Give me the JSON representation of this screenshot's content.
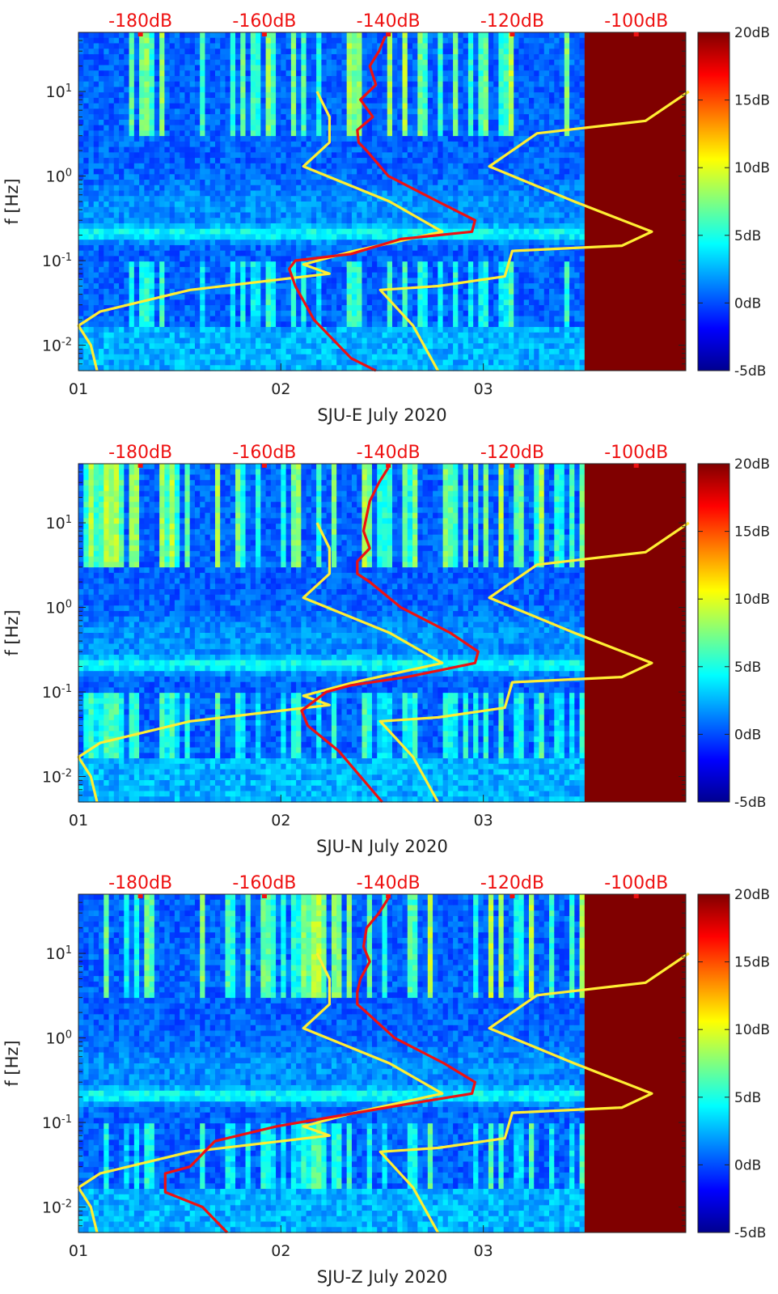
{
  "chart_data": [
    {
      "type": "heatmap",
      "title": "",
      "xlabel": "SJU-E July 2020",
      "ylabel": "f [Hz]",
      "x_ticks": [
        "01",
        "02",
        "03"
      ],
      "y_ticks": [
        "10^-2",
        "10^-1",
        "10^0",
        "10^1"
      ],
      "y_scale": "log",
      "ylim_hz": [
        0.005,
        50
      ],
      "xlim_days": [
        1,
        4
      ],
      "top_axis_ticks": [
        "-180dB",
        "-160dB",
        "-140dB",
        "-120dB",
        "-100dB"
      ],
      "top_axis_db_range": [
        -190,
        -92
      ],
      "colorbar_ticks": [
        "20dB",
        "15dB",
        "10dB",
        "5dB",
        "0dB",
        "-5dB"
      ],
      "colorbar_range_db": [
        -5,
        20
      ],
      "saturated_from_day": 3.5,
      "series": [
        {
          "name": "noise model (yellow)",
          "color": "#ffee33",
          "points": [
            [
              -151.5,
              10
            ],
            [
              -149.5,
              5
            ],
            [
              -149.5,
              2.5
            ],
            [
              -153.7,
              1.3
            ],
            [
              -139.8,
              0.5
            ],
            [
              -131.3,
              0.22
            ],
            [
              -145.5,
              0.13
            ],
            [
              -153.7,
              0.09
            ],
            [
              -149.5,
              0.07
            ],
            [
              -172.0,
              0.045
            ],
            [
              -186.5,
              0.025
            ],
            [
              -190.0,
              0.017
            ],
            [
              -188.0,
              0.01
            ],
            [
              -187.0,
              0.005
            ]
          ]
        },
        {
          "name": "noise model (yellow)",
          "color": "#ffee33",
          "points": [
            [
              -91.5,
              10
            ],
            [
              -98.5,
              4.5
            ],
            [
              -116.0,
              3.2
            ],
            [
              -123.7,
              1.3
            ],
            [
              -110.0,
              0.5
            ],
            [
              -97.5,
              0.22
            ],
            [
              -102.3,
              0.15
            ],
            [
              -120.0,
              0.13
            ],
            [
              -121.2,
              0.065
            ],
            [
              -132.0,
              0.05
            ],
            [
              -141.3,
              0.045
            ],
            [
              -136.0,
              0.017
            ],
            [
              -132.0,
              0.005
            ]
          ]
        },
        {
          "name": "station noise (red)",
          "color": "#ee1111",
          "points": [
            [
              -140.5,
              45
            ],
            [
              -141.5,
              30
            ],
            [
              -143.0,
              20
            ],
            [
              -142.0,
              12
            ],
            [
              -144.5,
              8
            ],
            [
              -142.5,
              5
            ],
            [
              -145.0,
              3.5
            ],
            [
              -144.8,
              2.5
            ],
            [
              -143.5,
              2
            ],
            [
              -140.0,
              1
            ],
            [
              -132.0,
              0.5
            ],
            [
              -126.0,
              0.3
            ],
            [
              -126.5,
              0.22
            ],
            [
              -138.0,
              0.18
            ],
            [
              -146.0,
              0.12
            ],
            [
              -155.0,
              0.1
            ],
            [
              -156.0,
              0.08
            ],
            [
              -155.0,
              0.05
            ],
            [
              -152.0,
              0.02
            ],
            [
              -146.0,
              0.007
            ],
            [
              -142.0,
              0.005
            ]
          ]
        }
      ]
    },
    {
      "type": "heatmap",
      "title": "",
      "xlabel": "SJU-N July 2020",
      "ylabel": "f [Hz]",
      "x_ticks": [
        "01",
        "02",
        "03"
      ],
      "y_ticks": [
        "10^-2",
        "10^-1",
        "10^0",
        "10^1"
      ],
      "y_scale": "log",
      "ylim_hz": [
        0.005,
        50
      ],
      "xlim_days": [
        1,
        4
      ],
      "top_axis_ticks": [
        "-180dB",
        "-160dB",
        "-140dB",
        "-120dB",
        "-100dB"
      ],
      "top_axis_db_range": [
        -190,
        -92
      ],
      "colorbar_ticks": [
        "20dB",
        "15dB",
        "10dB",
        "5dB",
        "0dB",
        "-5dB"
      ],
      "colorbar_range_db": [
        -5,
        20
      ],
      "saturated_from_day": 3.5,
      "series": [
        {
          "name": "noise model (yellow)",
          "color": "#ffee33",
          "points": [
            [
              -151.5,
              10
            ],
            [
              -149.5,
              5
            ],
            [
              -149.5,
              2.5
            ],
            [
              -153.7,
              1.3
            ],
            [
              -139.8,
              0.5
            ],
            [
              -131.3,
              0.22
            ],
            [
              -145.5,
              0.13
            ],
            [
              -153.7,
              0.09
            ],
            [
              -149.5,
              0.07
            ],
            [
              -172.0,
              0.045
            ],
            [
              -186.5,
              0.025
            ],
            [
              -190.0,
              0.017
            ],
            [
              -188.0,
              0.01
            ],
            [
              -187.0,
              0.005
            ]
          ]
        },
        {
          "name": "noise model (yellow)",
          "color": "#ffee33",
          "points": [
            [
              -91.5,
              10
            ],
            [
              -98.5,
              4.5
            ],
            [
              -116.0,
              3.2
            ],
            [
              -123.7,
              1.3
            ],
            [
              -110.0,
              0.5
            ],
            [
              -97.5,
              0.22
            ],
            [
              -102.3,
              0.15
            ],
            [
              -120.0,
              0.13
            ],
            [
              -121.2,
              0.065
            ],
            [
              -132.0,
              0.05
            ],
            [
              -141.3,
              0.045
            ],
            [
              -136.0,
              0.017
            ],
            [
              -132.0,
              0.005
            ]
          ]
        },
        {
          "name": "station noise (red)",
          "color": "#ee1111",
          "points": [
            [
              -140.0,
              45
            ],
            [
              -141.5,
              30
            ],
            [
              -143.0,
              18
            ],
            [
              -143.5,
              12
            ],
            [
              -144.0,
              8
            ],
            [
              -143.0,
              5
            ],
            [
              -145.0,
              3.5
            ],
            [
              -145.0,
              2.5
            ],
            [
              -143.0,
              2
            ],
            [
              -138.0,
              1
            ],
            [
              -130.0,
              0.5
            ],
            [
              -125.5,
              0.3
            ],
            [
              -126.0,
              0.22
            ],
            [
              -137.0,
              0.15
            ],
            [
              -146.0,
              0.12
            ],
            [
              -150.0,
              0.1
            ],
            [
              -154.0,
              0.06
            ],
            [
              -153.0,
              0.04
            ],
            [
              -148.0,
              0.02
            ],
            [
              -141.0,
              0.005
            ]
          ]
        }
      ]
    },
    {
      "type": "heatmap",
      "title": "",
      "xlabel": "SJU-Z July 2020",
      "ylabel": "f [Hz]",
      "x_ticks": [
        "01",
        "02",
        "03"
      ],
      "y_ticks": [
        "10^-2",
        "10^-1",
        "10^0",
        "10^1"
      ],
      "y_scale": "log",
      "ylim_hz": [
        0.005,
        50
      ],
      "xlim_days": [
        1,
        4
      ],
      "top_axis_ticks": [
        "-180dB",
        "-160dB",
        "-140dB",
        "-120dB",
        "-100dB"
      ],
      "top_axis_db_range": [
        -190,
        -92
      ],
      "colorbar_ticks": [
        "20dB",
        "15dB",
        "10dB",
        "5dB",
        "0dB",
        "-5dB"
      ],
      "colorbar_range_db": [
        -5,
        20
      ],
      "saturated_from_day": 3.5,
      "series": [
        {
          "name": "noise model (yellow)",
          "color": "#ffee33",
          "points": [
            [
              -151.5,
              10
            ],
            [
              -149.5,
              5
            ],
            [
              -149.5,
              2.5
            ],
            [
              -153.7,
              1.3
            ],
            [
              -139.8,
              0.5
            ],
            [
              -131.3,
              0.22
            ],
            [
              -145.5,
              0.13
            ],
            [
              -153.7,
              0.09
            ],
            [
              -149.5,
              0.07
            ],
            [
              -172.0,
              0.045
            ],
            [
              -186.5,
              0.025
            ],
            [
              -190.0,
              0.017
            ],
            [
              -188.0,
              0.01
            ],
            [
              -187.0,
              0.005
            ]
          ]
        },
        {
          "name": "noise model (yellow)",
          "color": "#ffee33",
          "points": [
            [
              -91.5,
              10
            ],
            [
              -98.5,
              4.5
            ],
            [
              -116.0,
              3.2
            ],
            [
              -123.7,
              1.3
            ],
            [
              -110.0,
              0.5
            ],
            [
              -97.5,
              0.22
            ],
            [
              -102.3,
              0.15
            ],
            [
              -120.0,
              0.13
            ],
            [
              -121.2,
              0.065
            ],
            [
              -132.0,
              0.05
            ],
            [
              -141.3,
              0.045
            ],
            [
              -136.0,
              0.017
            ],
            [
              -132.0,
              0.005
            ]
          ]
        },
        {
          "name": "station noise (red)",
          "color": "#ee1111",
          "points": [
            [
              -140.0,
              45
            ],
            [
              -141.5,
              30
            ],
            [
              -143.5,
              20
            ],
            [
              -144.0,
              12
            ],
            [
              -143.0,
              8
            ],
            [
              -144.5,
              5
            ],
            [
              -145.0,
              3.5
            ],
            [
              -145.0,
              2.5
            ],
            [
              -143.5,
              2
            ],
            [
              -139.0,
              1
            ],
            [
              -131.0,
              0.5
            ],
            [
              -126.0,
              0.3
            ],
            [
              -126.5,
              0.22
            ],
            [
              -138.0,
              0.16
            ],
            [
              -148.0,
              0.12
            ],
            [
              -158.0,
              0.09
            ],
            [
              -168.0,
              0.06
            ],
            [
              -172.0,
              0.03
            ],
            [
              -176.0,
              0.025
            ],
            [
              -176.0,
              0.015
            ],
            [
              -170.0,
              0.01
            ],
            [
              -166.0,
              0.005
            ]
          ]
        }
      ]
    }
  ]
}
